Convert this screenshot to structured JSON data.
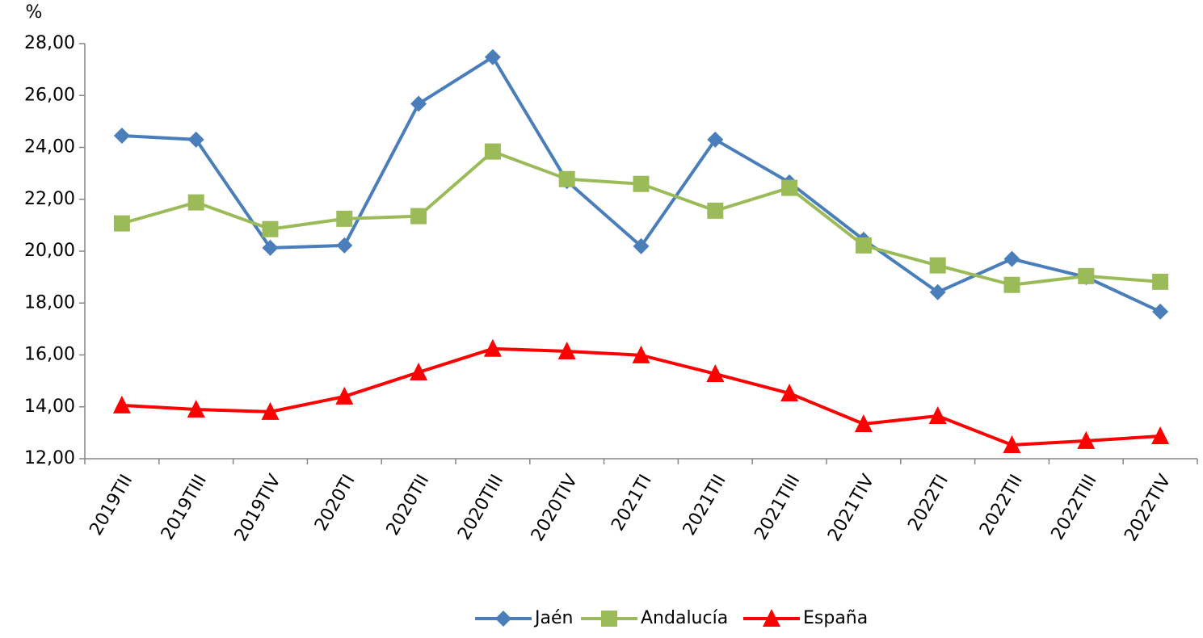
{
  "chart_data": {
    "type": "line",
    "y_label": "%",
    "categories": [
      "2019TII",
      "2019TIII",
      "2019TIV",
      "2020TI",
      "2020TII",
      "2020TIII",
      "2020TIV",
      "2021TI",
      "2021TII",
      "2021TIII",
      "2021TIV",
      "2022TI",
      "2022TII",
      "2022TIII",
      "2022TIV"
    ],
    "series": [
      {
        "name": "Jaén",
        "color": "#4a7ebb",
        "marker": "diamond",
        "values": [
          24.45,
          24.3,
          20.13,
          20.22,
          25.68,
          27.48,
          22.7,
          20.19,
          24.3,
          22.65,
          20.44,
          18.42,
          19.7,
          19.0,
          17.67
        ]
      },
      {
        "name": "Andalucía",
        "color": "#9bbb59",
        "marker": "square",
        "values": [
          21.07,
          21.88,
          20.85,
          21.25,
          21.35,
          23.84,
          22.78,
          22.59,
          21.56,
          22.44,
          20.22,
          19.45,
          18.7,
          19.04,
          18.82
        ]
      },
      {
        "name": "España",
        "color": "#ff0000",
        "marker": "triangle",
        "values": [
          14.06,
          13.9,
          13.81,
          14.4,
          15.33,
          16.24,
          16.14,
          15.99,
          15.27,
          14.52,
          13.34,
          13.65,
          12.53,
          12.69,
          12.87
        ]
      }
    ],
    "ylim": [
      12,
      28
    ],
    "yticks": [
      {
        "value": 12,
        "label": "12,00"
      },
      {
        "value": 14,
        "label": "14,00"
      },
      {
        "value": 16,
        "label": "16,00"
      },
      {
        "value": 18,
        "label": "18,00"
      },
      {
        "value": 20,
        "label": "20,00"
      },
      {
        "value": 22,
        "label": "22,00"
      },
      {
        "value": 24,
        "label": "24,00"
      },
      {
        "value": 26,
        "label": "26,00"
      },
      {
        "value": 28,
        "label": "28,00"
      }
    ],
    "grid": false,
    "legend": "bottom"
  }
}
